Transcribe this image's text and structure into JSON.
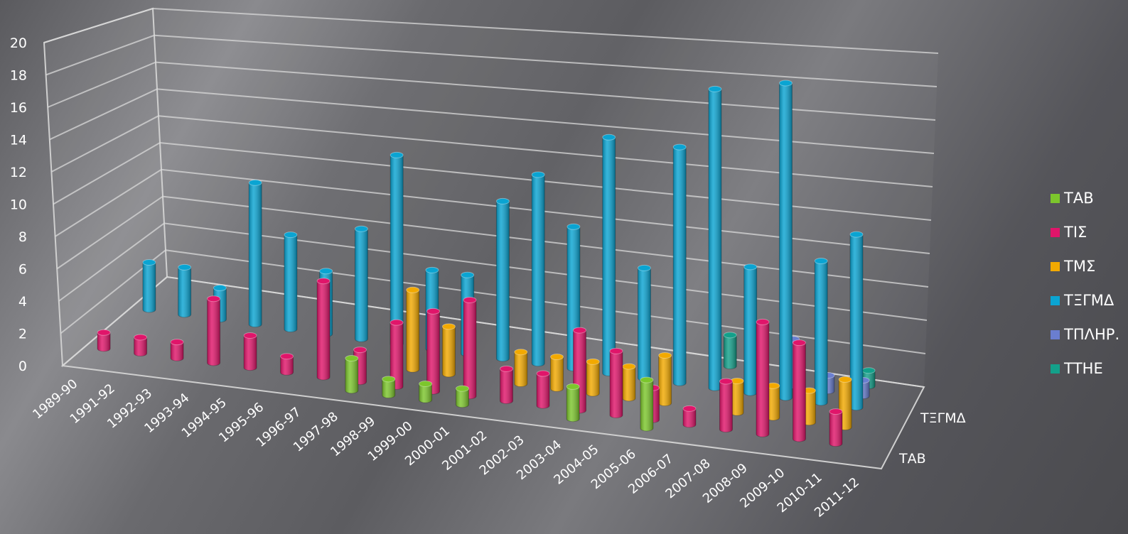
{
  "chart_data": {
    "type": "bar",
    "style": "3d-cylinder",
    "title": "",
    "xlabel": "",
    "ylabel": "",
    "ylim": [
      0,
      20
    ],
    "yticks": [
      0,
      2,
      4,
      6,
      8,
      10,
      12,
      14,
      16,
      18,
      20
    ],
    "grid": true,
    "legend_position": "right",
    "categories": [
      "1989-90",
      "1991-92",
      "1992-93",
      "1993-94",
      "1994-95",
      "1995-96",
      "1996-97",
      "1997-98",
      "1998-99",
      "1999-00",
      "2000-01",
      "2001-02",
      "2002-03",
      "2003-04",
      "2004-05",
      "2005-06",
      "2006-07",
      "2007-08",
      "2008-09",
      "2009-10",
      "2010-11",
      "2011-12"
    ],
    "depth_labels": [
      "ΤΑΒ",
      "ΤΞΓΜΔ"
    ],
    "series": [
      {
        "name": "ΤΑΒ",
        "color": "#7cc62c",
        "values": [
          0,
          0,
          0,
          0,
          0,
          0,
          0,
          2,
          1,
          1,
          1,
          0,
          0,
          2,
          0,
          3,
          0,
          0,
          0,
          0,
          0,
          0
        ]
      },
      {
        "name": "ΤΙΣ",
        "color": "#e0156a",
        "values": [
          1,
          1,
          1,
          4,
          2,
          1,
          6,
          2,
          4,
          5,
          6,
          2,
          2,
          5,
          4,
          2,
          1,
          3,
          7,
          6,
          2,
          0
        ]
      },
      {
        "name": "ΤΜΣ",
        "color": "#f2a900",
        "values": [
          0,
          0,
          0,
          0,
          0,
          0,
          0,
          0,
          5,
          3,
          0,
          2,
          2,
          2,
          2,
          3,
          0,
          2,
          2,
          2,
          3,
          0
        ]
      },
      {
        "name": "ΤΞΓΜΔ",
        "color": "#0aa4d2",
        "values": [
          3,
          3,
          2,
          9,
          6,
          4,
          7,
          12,
          5,
          5,
          10,
          12,
          9,
          15,
          7,
          15,
          19,
          8,
          20,
          9,
          11,
          0
        ]
      },
      {
        "name": "ΤΠΛΗΡ.",
        "color": "#6a7ed0",
        "values": [
          0,
          0,
          0,
          0,
          0,
          0,
          0,
          0,
          0,
          0,
          0,
          0,
          0,
          0,
          0,
          0,
          0,
          0,
          3,
          1,
          1,
          0
        ]
      },
      {
        "name": "ΤΤΗΕ",
        "color": "#13a08a",
        "values": [
          0,
          0,
          0,
          0,
          0,
          0,
          0,
          0,
          0,
          0,
          0,
          0,
          0,
          0,
          0,
          0,
          2,
          0,
          0,
          0,
          1,
          0
        ]
      }
    ]
  }
}
